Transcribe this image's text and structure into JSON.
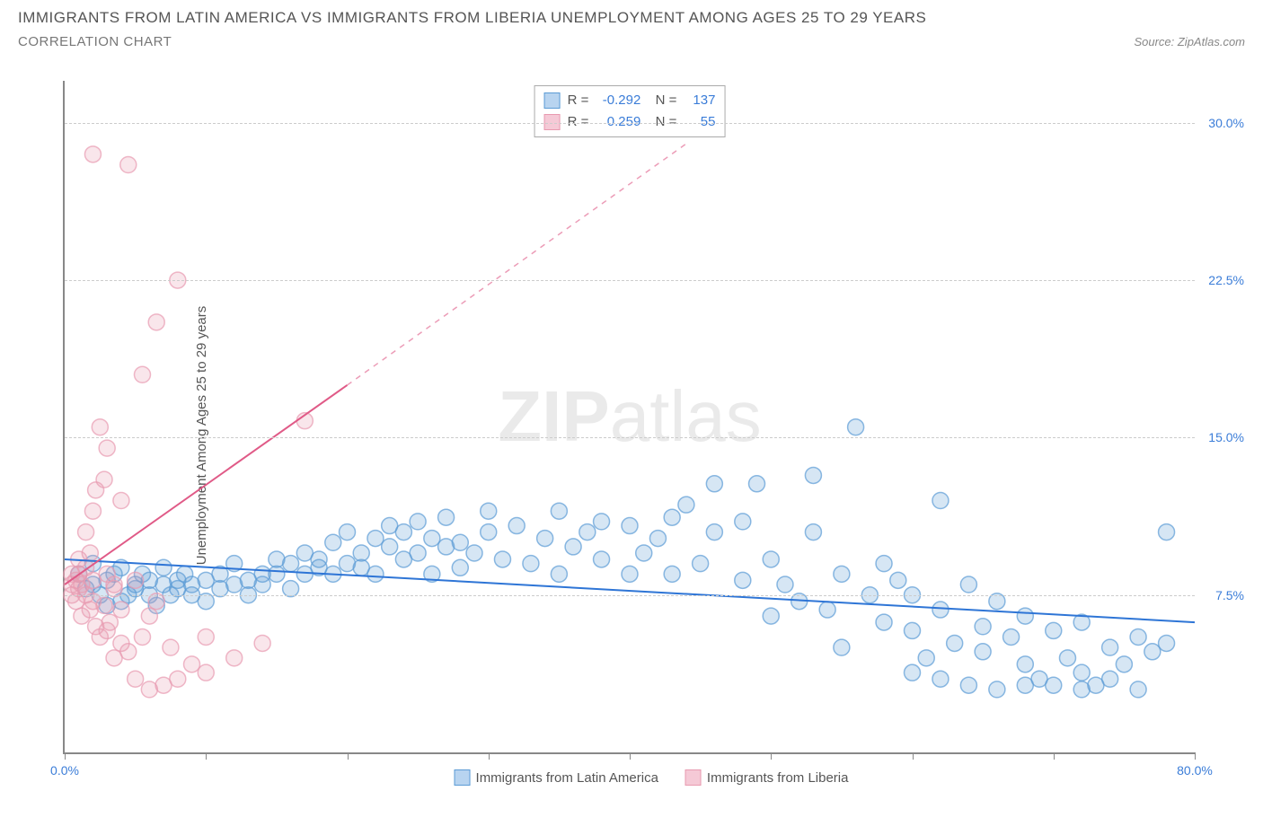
{
  "title": "IMMIGRANTS FROM LATIN AMERICA VS IMMIGRANTS FROM LIBERIA UNEMPLOYMENT AMONG AGES 25 TO 29 YEARS",
  "subtitle": "CORRELATION CHART",
  "source": "Source: ZipAtlas.com",
  "y_axis_label": "Unemployment Among Ages 25 to 29 years",
  "watermark_bold": "ZIP",
  "watermark_light": "atlas",
  "chart": {
    "type": "scatter",
    "xlim": [
      0,
      80
    ],
    "ylim": [
      0,
      32
    ],
    "x_ticks": [
      0,
      10,
      20,
      30,
      40,
      50,
      60,
      70,
      80
    ],
    "x_tick_labels": {
      "0": "0.0%",
      "80": "80.0%"
    },
    "y_ticks": [
      7.5,
      15.0,
      22.5,
      30.0
    ],
    "y_tick_labels": [
      "7.5%",
      "15.0%",
      "22.5%",
      "30.0%"
    ],
    "background_color": "#ffffff",
    "grid_color": "#cccccc",
    "axis_color": "#888888",
    "marker_radius": 9,
    "marker_fill_opacity": 0.25,
    "marker_stroke_opacity": 0.7,
    "marker_stroke_width": 1.5,
    "line_width": 2,
    "series": [
      {
        "name": "Immigrants from Latin America",
        "color": "#5b9bd5",
        "line_color": "#2e75d6",
        "swatch_fill": "#b8d4f0",
        "swatch_border": "#5b9bd5",
        "R": "-0.292",
        "N": "137",
        "trend_solid": {
          "x1": 0,
          "y1": 9.2,
          "x2": 80,
          "y2": 6.2
        },
        "trend_dashed": null,
        "points": [
          [
            1,
            8.5
          ],
          [
            1.5,
            7.8
          ],
          [
            2,
            8
          ],
          [
            2,
            9
          ],
          [
            2.5,
            7.5
          ],
          [
            3,
            8.2
          ],
          [
            3,
            7
          ],
          [
            3.5,
            8.5
          ],
          [
            4,
            7.2
          ],
          [
            4,
            8.8
          ],
          [
            4.5,
            7.5
          ],
          [
            5,
            8
          ],
          [
            5,
            7.8
          ],
          [
            5.5,
            8.5
          ],
          [
            6,
            7.5
          ],
          [
            6,
            8.2
          ],
          [
            6.5,
            7
          ],
          [
            7,
            8
          ],
          [
            7,
            8.8
          ],
          [
            7.5,
            7.5
          ],
          [
            8,
            8.2
          ],
          [
            8,
            7.8
          ],
          [
            8.5,
            8.5
          ],
          [
            9,
            7.5
          ],
          [
            9,
            8
          ],
          [
            10,
            8.2
          ],
          [
            10,
            7.2
          ],
          [
            11,
            8.5
          ],
          [
            11,
            7.8
          ],
          [
            12,
            8
          ],
          [
            12,
            9
          ],
          [
            13,
            8.2
          ],
          [
            13,
            7.5
          ],
          [
            14,
            8.5
          ],
          [
            14,
            8
          ],
          [
            15,
            9.2
          ],
          [
            15,
            8.5
          ],
          [
            16,
            7.8
          ],
          [
            16,
            9
          ],
          [
            17,
            8.5
          ],
          [
            17,
            9.5
          ],
          [
            18,
            8.8
          ],
          [
            18,
            9.2
          ],
          [
            19,
            8.5
          ],
          [
            19,
            10
          ],
          [
            20,
            9
          ],
          [
            20,
            10.5
          ],
          [
            21,
            8.8
          ],
          [
            21,
            9.5
          ],
          [
            22,
            10.2
          ],
          [
            22,
            8.5
          ],
          [
            23,
            9.8
          ],
          [
            23,
            10.8
          ],
          [
            24,
            9.2
          ],
          [
            24,
            10.5
          ],
          [
            25,
            11
          ],
          [
            25,
            9.5
          ],
          [
            26,
            8.5
          ],
          [
            26,
            10.2
          ],
          [
            27,
            9.8
          ],
          [
            27,
            11.2
          ],
          [
            28,
            10
          ],
          [
            28,
            8.8
          ],
          [
            29,
            9.5
          ],
          [
            30,
            10.5
          ],
          [
            30,
            11.5
          ],
          [
            31,
            9.2
          ],
          [
            32,
            10.8
          ],
          [
            33,
            9
          ],
          [
            34,
            10.2
          ],
          [
            35,
            11.5
          ],
          [
            35,
            8.5
          ],
          [
            36,
            9.8
          ],
          [
            37,
            10.5
          ],
          [
            38,
            9.2
          ],
          [
            38,
            11
          ],
          [
            40,
            10.8
          ],
          [
            40,
            8.5
          ],
          [
            41,
            9.5
          ],
          [
            42,
            10.2
          ],
          [
            43,
            11.2
          ],
          [
            43,
            8.5
          ],
          [
            44,
            11.8
          ],
          [
            45,
            9
          ],
          [
            46,
            10.5
          ],
          [
            46,
            12.8
          ],
          [
            48,
            8.2
          ],
          [
            48,
            11
          ],
          [
            49,
            12.8
          ],
          [
            50,
            6.5
          ],
          [
            50,
            9.2
          ],
          [
            51,
            8
          ],
          [
            52,
            7.2
          ],
          [
            53,
            10.5
          ],
          [
            53,
            13.2
          ],
          [
            54,
            6.8
          ],
          [
            55,
            8.5
          ],
          [
            55,
            5
          ],
          [
            56,
            15.5
          ],
          [
            57,
            7.5
          ],
          [
            58,
            6.2
          ],
          [
            58,
            9
          ],
          [
            59,
            8.2
          ],
          [
            60,
            5.8
          ],
          [
            60,
            7.5
          ],
          [
            61,
            4.5
          ],
          [
            62,
            6.8
          ],
          [
            62,
            12
          ],
          [
            63,
            5.2
          ],
          [
            64,
            8
          ],
          [
            65,
            6
          ],
          [
            65,
            4.8
          ],
          [
            66,
            7.2
          ],
          [
            67,
            5.5
          ],
          [
            68,
            4.2
          ],
          [
            68,
            6.5
          ],
          [
            69,
            3.5
          ],
          [
            70,
            5.8
          ],
          [
            70,
            3.2
          ],
          [
            71,
            4.5
          ],
          [
            72,
            6.2
          ],
          [
            72,
            3.8
          ],
          [
            73,
            3.2
          ],
          [
            74,
            5
          ],
          [
            74,
            3.5
          ],
          [
            75,
            4.2
          ],
          [
            76,
            5.5
          ],
          [
            76,
            3
          ],
          [
            77,
            4.8
          ],
          [
            78,
            5.2
          ],
          [
            78,
            10.5
          ],
          [
            60,
            3.8
          ],
          [
            62,
            3.5
          ],
          [
            64,
            3.2
          ],
          [
            66,
            3
          ],
          [
            68,
            3.2
          ],
          [
            72,
            3
          ]
        ]
      },
      {
        "name": "Immigrants from Liberia",
        "color": "#e89ab0",
        "line_color": "#e05a87",
        "swatch_fill": "#f5c9d6",
        "swatch_border": "#e89ab0",
        "R": "0.259",
        "N": "55",
        "trend_solid": {
          "x1": 0,
          "y1": 8.0,
          "x2": 20,
          "y2": 17.5
        },
        "trend_dashed": {
          "x1": 20,
          "y1": 17.5,
          "x2": 44,
          "y2": 29
        },
        "points": [
          [
            0.5,
            8
          ],
          [
            0.5,
            7.5
          ],
          [
            0.5,
            8.5
          ],
          [
            0.8,
            7.2
          ],
          [
            0.8,
            8.2
          ],
          [
            1,
            7.8
          ],
          [
            1,
            8.5
          ],
          [
            1,
            9.2
          ],
          [
            1.2,
            6.5
          ],
          [
            1.2,
            8
          ],
          [
            1.5,
            7.5
          ],
          [
            1.5,
            10.5
          ],
          [
            1.5,
            8.8
          ],
          [
            1.8,
            6.8
          ],
          [
            1.8,
            9.5
          ],
          [
            2,
            7.2
          ],
          [
            2,
            11.5
          ],
          [
            2,
            8.2
          ],
          [
            2.2,
            6
          ],
          [
            2.2,
            12.5
          ],
          [
            2.5,
            5.5
          ],
          [
            2.5,
            15.5
          ],
          [
            2.8,
            7
          ],
          [
            2.8,
            13
          ],
          [
            3,
            5.8
          ],
          [
            3,
            8.5
          ],
          [
            3,
            14.5
          ],
          [
            3.2,
            6.2
          ],
          [
            3.5,
            4.5
          ],
          [
            3.5,
            7.8
          ],
          [
            4,
            5.2
          ],
          [
            4,
            6.8
          ],
          [
            4,
            12
          ],
          [
            4.5,
            4.8
          ],
          [
            4.5,
            28
          ],
          [
            5,
            3.5
          ],
          [
            5,
            8.2
          ],
          [
            5.5,
            5.5
          ],
          [
            5.5,
            18
          ],
          [
            6,
            6.5
          ],
          [
            6,
            3
          ],
          [
            6.5,
            7.2
          ],
          [
            6.5,
            20.5
          ],
          [
            7,
            3.2
          ],
          [
            7.5,
            5
          ],
          [
            8,
            3.5
          ],
          [
            8,
            22.5
          ],
          [
            9,
            4.2
          ],
          [
            10,
            5.5
          ],
          [
            10,
            3.8
          ],
          [
            12,
            4.5
          ],
          [
            14,
            5.2
          ],
          [
            17,
            15.8
          ],
          [
            2,
            28.5
          ],
          [
            3.5,
            8
          ]
        ]
      }
    ]
  },
  "legend": {
    "items": [
      {
        "label": "Immigrants from Latin America",
        "swatch_fill": "#b8d4f0",
        "swatch_border": "#5b9bd5"
      },
      {
        "label": "Immigrants from Liberia",
        "swatch_fill": "#f5c9d6",
        "swatch_border": "#e89ab0"
      }
    ]
  }
}
